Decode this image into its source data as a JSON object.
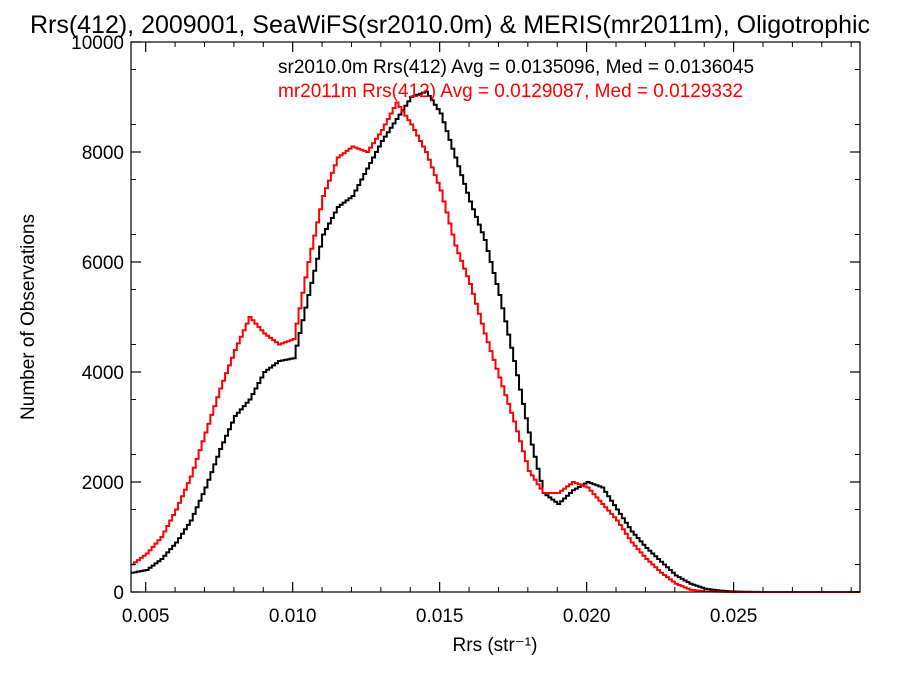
{
  "chart_data": {
    "type": "line",
    "title": "Rrs(412), 2009001, SeaWiFS(sr2010.0m) & MERIS(mr2011m), Oligotrophic",
    "xlabel": "Rrs (str⁻¹)",
    "ylabel": "Number of Observations",
    "xlim": [
      0.0045,
      0.0293
    ],
    "ylim": [
      0,
      10000
    ],
    "x_ticks": [
      0.005,
      0.01,
      0.015,
      0.02,
      0.025
    ],
    "x_tick_labels": [
      "0.005",
      "0.010",
      "0.015",
      "0.020",
      "0.025"
    ],
    "y_ticks": [
      0,
      2000,
      4000,
      6000,
      8000,
      10000
    ],
    "y_tick_labels": [
      "0",
      "2000",
      "4000",
      "6000",
      "8000",
      "10000"
    ],
    "grid": false,
    "legend": "top",
    "colors": {
      "sr": "#000000",
      "mr": "#ff0000"
    },
    "annotations": [
      {
        "text": "sr2010.0m Rrs(412) Avg = 0.0135096, Med = 0.0136045",
        "color": "#000000"
      },
      {
        "text": "mr2011m Rrs(412) Avg = 0.0129087, Med = 0.0129332",
        "color": "#ff0000"
      }
    ],
    "series": [
      {
        "color": "#000000",
        "points": [
          [
            0.0045,
            350
          ],
          [
            0.005,
            400
          ],
          [
            0.0055,
            600
          ],
          [
            0.006,
            900
          ],
          [
            0.0065,
            1300
          ],
          [
            0.007,
            1900
          ],
          [
            0.0075,
            2600
          ],
          [
            0.008,
            3200
          ],
          [
            0.0085,
            3500
          ],
          [
            0.009,
            4000
          ],
          [
            0.0095,
            4200
          ],
          [
            0.01,
            4250
          ],
          [
            0.0105,
            5400
          ],
          [
            0.011,
            6500
          ],
          [
            0.0115,
            7000
          ],
          [
            0.012,
            7200
          ],
          [
            0.0125,
            7700
          ],
          [
            0.013,
            8200
          ],
          [
            0.0135,
            8600
          ],
          [
            0.014,
            9000
          ],
          [
            0.0145,
            9100
          ],
          [
            0.015,
            8700
          ],
          [
            0.0155,
            7900
          ],
          [
            0.016,
            7100
          ],
          [
            0.0165,
            6400
          ],
          [
            0.017,
            5400
          ],
          [
            0.0175,
            4200
          ],
          [
            0.018,
            2900
          ],
          [
            0.0185,
            1800
          ],
          [
            0.019,
            1600
          ],
          [
            0.0195,
            1850
          ],
          [
            0.02,
            2000
          ],
          [
            0.0205,
            1900
          ],
          [
            0.021,
            1500
          ],
          [
            0.0215,
            1100
          ],
          [
            0.022,
            800
          ],
          [
            0.0225,
            550
          ],
          [
            0.023,
            300
          ],
          [
            0.0235,
            150
          ],
          [
            0.024,
            60
          ],
          [
            0.0245,
            25
          ],
          [
            0.025,
            8
          ],
          [
            0.026,
            0
          ],
          [
            0.0293,
            0
          ]
        ]
      },
      {
        "color": "#ff0000",
        "points": [
          [
            0.0045,
            500
          ],
          [
            0.005,
            700
          ],
          [
            0.0055,
            1000
          ],
          [
            0.006,
            1500
          ],
          [
            0.0065,
            2100
          ],
          [
            0.007,
            2900
          ],
          [
            0.0075,
            3700
          ],
          [
            0.008,
            4400
          ],
          [
            0.0085,
            5000
          ],
          [
            0.009,
            4700
          ],
          [
            0.0095,
            4500
          ],
          [
            0.01,
            4600
          ],
          [
            0.0105,
            6000
          ],
          [
            0.011,
            7200
          ],
          [
            0.0115,
            7900
          ],
          [
            0.012,
            8100
          ],
          [
            0.0125,
            8000
          ],
          [
            0.013,
            8400
          ],
          [
            0.0135,
            8900
          ],
          [
            0.014,
            8500
          ],
          [
            0.0145,
            8000
          ],
          [
            0.015,
            7300
          ],
          [
            0.0155,
            6300
          ],
          [
            0.016,
            5600
          ],
          [
            0.0165,
            4700
          ],
          [
            0.017,
            3900
          ],
          [
            0.0175,
            3100
          ],
          [
            0.018,
            2200
          ],
          [
            0.0185,
            1800
          ],
          [
            0.019,
            1800
          ],
          [
            0.0195,
            2000
          ],
          [
            0.02,
            1900
          ],
          [
            0.0205,
            1600
          ],
          [
            0.021,
            1300
          ],
          [
            0.0215,
            900
          ],
          [
            0.022,
            600
          ],
          [
            0.0225,
            350
          ],
          [
            0.023,
            150
          ],
          [
            0.0235,
            40
          ],
          [
            0.024,
            10
          ],
          [
            0.025,
            0
          ],
          [
            0.0293,
            0
          ]
        ]
      }
    ]
  }
}
